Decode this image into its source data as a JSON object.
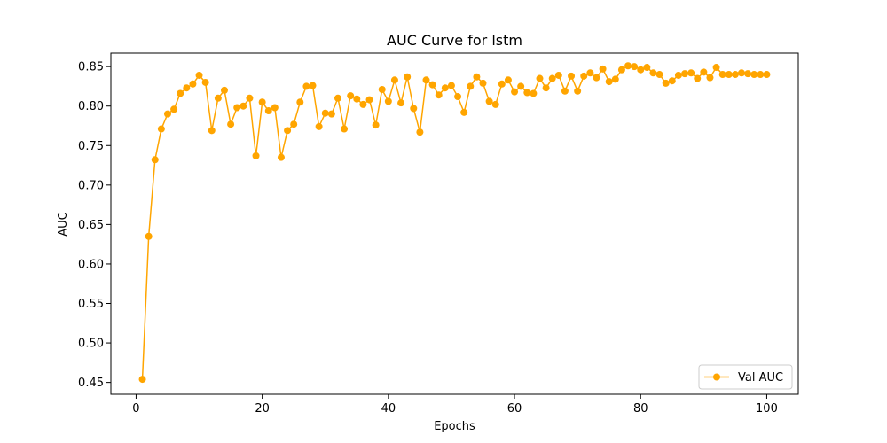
{
  "chart_data": {
    "type": "line",
    "title": "AUC Curve for lstm",
    "xlabel": "Epochs",
    "ylabel": "AUC",
    "xlim": [
      -4,
      105
    ],
    "ylim": [
      0.435,
      0.867
    ],
    "xticks": [
      0,
      20,
      40,
      60,
      80,
      100
    ],
    "yticks": [
      0.45,
      0.5,
      0.55,
      0.6,
      0.65,
      0.7,
      0.75,
      0.8,
      0.85
    ],
    "grid": false,
    "legend_position": "lower-right",
    "series": [
      {
        "name": "Val AUC",
        "color": "#ffa500",
        "marker": "circle",
        "x": [
          1,
          2,
          3,
          4,
          5,
          6,
          7,
          8,
          9,
          10,
          11,
          12,
          13,
          14,
          15,
          16,
          17,
          18,
          19,
          20,
          21,
          22,
          23,
          24,
          25,
          26,
          27,
          28,
          29,
          30,
          31,
          32,
          33,
          34,
          35,
          36,
          37,
          38,
          39,
          40,
          41,
          42,
          43,
          44,
          45,
          46,
          47,
          48,
          49,
          50,
          51,
          52,
          53,
          54,
          55,
          56,
          57,
          58,
          59,
          60,
          61,
          62,
          63,
          64,
          65,
          66,
          67,
          68,
          69,
          70,
          71,
          72,
          73,
          74,
          75,
          76,
          77,
          78,
          79,
          80,
          81,
          82,
          83,
          84,
          85,
          86,
          87,
          88,
          89,
          90,
          91,
          92,
          93,
          94,
          95,
          96,
          97,
          98,
          99,
          100
        ],
        "values": [
          0.454,
          0.635,
          0.732,
          0.771,
          0.79,
          0.796,
          0.816,
          0.823,
          0.828,
          0.839,
          0.83,
          0.769,
          0.81,
          0.82,
          0.777,
          0.798,
          0.8,
          0.81,
          0.737,
          0.805,
          0.794,
          0.798,
          0.735,
          0.769,
          0.777,
          0.805,
          0.825,
          0.826,
          0.774,
          0.791,
          0.79,
          0.81,
          0.771,
          0.813,
          0.809,
          0.802,
          0.808,
          0.776,
          0.821,
          0.806,
          0.833,
          0.804,
          0.837,
          0.797,
          0.767,
          0.833,
          0.827,
          0.814,
          0.823,
          0.826,
          0.812,
          0.792,
          0.825,
          0.837,
          0.829,
          0.806,
          0.802,
          0.828,
          0.833,
          0.818,
          0.825,
          0.817,
          0.816,
          0.835,
          0.823,
          0.835,
          0.839,
          0.819,
          0.838,
          0.819,
          0.838,
          0.842,
          0.836,
          0.847,
          0.831,
          0.834,
          0.846,
          0.851,
          0.85,
          0.846,
          0.849,
          0.842,
          0.84,
          0.829,
          0.832,
          0.839,
          0.841,
          0.842,
          0.835,
          0.843,
          0.836,
          0.849,
          0.84,
          0.84,
          0.84,
          0.842,
          0.841,
          0.84,
          0.84,
          0.84
        ]
      }
    ]
  }
}
